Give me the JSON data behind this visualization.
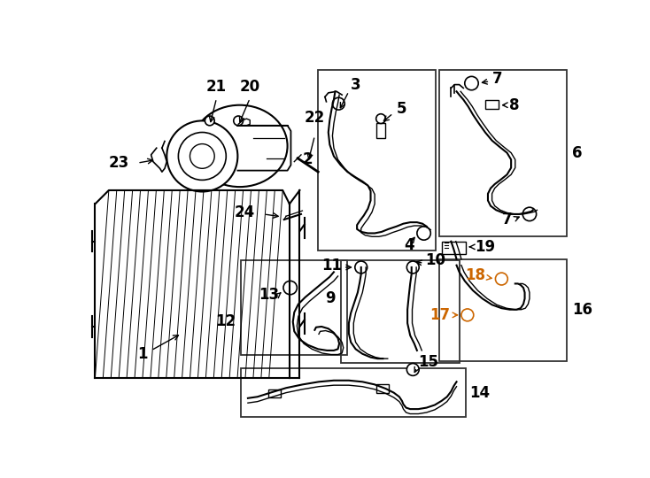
{
  "background_color": "#ffffff",
  "line_color": "#000000",
  "orange_color": "#cc6600",
  "fig_width": 7.34,
  "fig_height": 5.4,
  "dpi": 100
}
